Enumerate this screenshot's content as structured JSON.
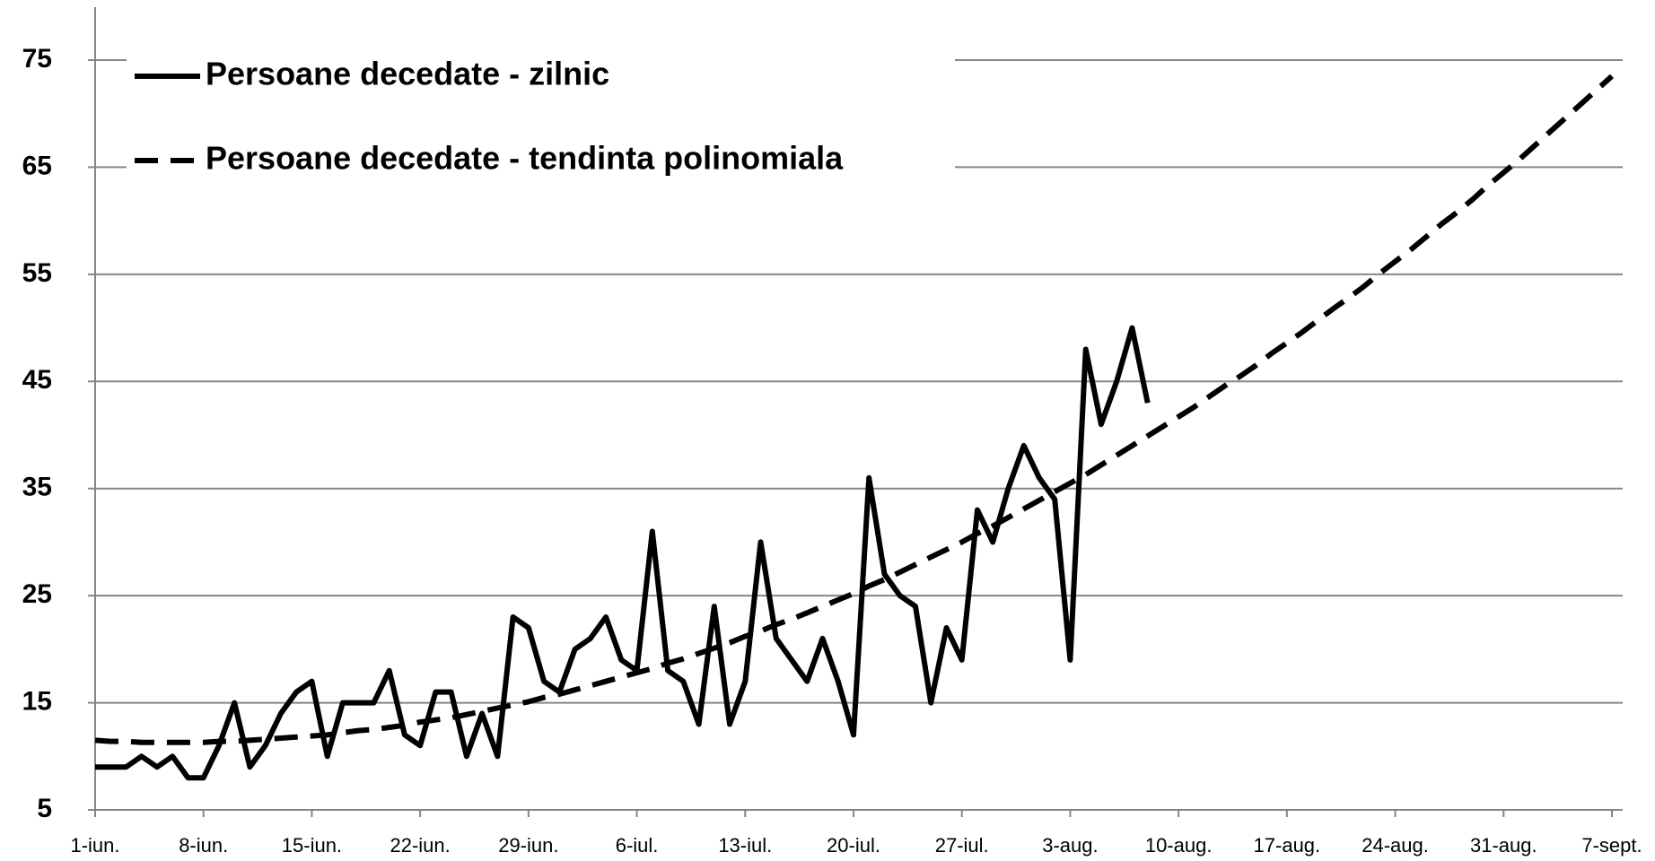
{
  "chart_data": {
    "type": "line",
    "categories": [
      "1-iun.",
      null,
      null,
      null,
      null,
      null,
      null,
      "8-iun.",
      null,
      null,
      null,
      null,
      null,
      null,
      "15-iun.",
      null,
      null,
      null,
      null,
      null,
      null,
      "22-iun.",
      null,
      null,
      null,
      null,
      null,
      null,
      "29-iun.",
      null,
      null,
      null,
      null,
      null,
      null,
      "6-iul.",
      null,
      null,
      null,
      null,
      null,
      null,
      "13-iul.",
      null,
      null,
      null,
      null,
      null,
      null,
      "20-iul.",
      null,
      null,
      null,
      null,
      null,
      null,
      "27-iul.",
      null,
      null,
      null,
      null,
      null,
      null,
      "3-aug.",
      null,
      null,
      null,
      null,
      null,
      null,
      "10-aug.",
      null,
      null,
      null,
      null,
      null,
      null,
      "17-aug.",
      null,
      null,
      null,
      null,
      null,
      null,
      "24-aug.",
      null,
      null,
      null,
      null,
      null,
      null,
      "31-aug.",
      null,
      null,
      null,
      null,
      null,
      null,
      "7-sept."
    ],
    "series": [
      {
        "name": "Persoane decedate - zilnic",
        "color": "#000000",
        "dash": false,
        "values": [
          9,
          9,
          9,
          10,
          9,
          10,
          8,
          8,
          11,
          15,
          9,
          11,
          14,
          16,
          17,
          10,
          15,
          15,
          15,
          18,
          12,
          11,
          16,
          16,
          10,
          14,
          10,
          23,
          22,
          17,
          16,
          20,
          21,
          23,
          19,
          18,
          31,
          18,
          17,
          13,
          24,
          13,
          17,
          30,
          21,
          19,
          17,
          21,
          17,
          12,
          36,
          27,
          25,
          24,
          15,
          22,
          19,
          33,
          30,
          35,
          39,
          36,
          34,
          19,
          48,
          41,
          45,
          50,
          43,
          null,
          null,
          null,
          null,
          null,
          null,
          null,
          null,
          null,
          null,
          null,
          null,
          null,
          null,
          null,
          null,
          null,
          null,
          null,
          null,
          null,
          null,
          null,
          null,
          null,
          null,
          null,
          null,
          null,
          null
        ]
      },
      {
        "name": "Persoane decedate - tendinta polinomiala",
        "color": "#000000",
        "dash": true,
        "values": [
          11.5,
          11.4,
          11.4,
          11.3,
          11.3,
          11.3,
          11.3,
          11.3,
          11.4,
          11.4,
          11.5,
          11.6,
          11.7,
          11.8,
          11.9,
          12.0,
          12.2,
          12.4,
          12.5,
          12.7,
          12.9,
          13.2,
          13.4,
          13.6,
          13.9,
          14.2,
          14.5,
          14.8,
          15.1,
          15.5,
          15.8,
          16.2,
          16.6,
          17.0,
          17.4,
          17.8,
          18.2,
          18.7,
          19.1,
          19.6,
          20.1,
          20.6,
          21.2,
          21.7,
          22.3,
          22.8,
          23.4,
          24.0,
          24.6,
          25.2,
          25.9,
          26.5,
          27.2,
          27.9,
          28.6,
          29.3,
          30.0,
          30.8,
          31.5,
          32.3,
          33.1,
          33.9,
          34.7,
          35.5,
          36.3,
          37.2,
          38.1,
          39.0,
          39.9,
          40.8,
          41.7,
          42.6,
          43.6,
          44.6,
          45.5,
          46.5,
          47.6,
          48.6,
          49.6,
          50.7,
          51.8,
          52.8,
          53.9,
          55.1,
          56.2,
          57.3,
          58.5,
          59.7,
          60.8,
          62.0,
          63.3,
          64.5,
          65.7,
          67.0,
          68.3,
          69.6,
          70.9,
          72.2,
          73.5
        ]
      }
    ],
    "ylim": [
      5,
      75
    ],
    "yticks": [
      5,
      15,
      25,
      35,
      45,
      55,
      65,
      75
    ],
    "grid": true,
    "legend": "top-left"
  }
}
